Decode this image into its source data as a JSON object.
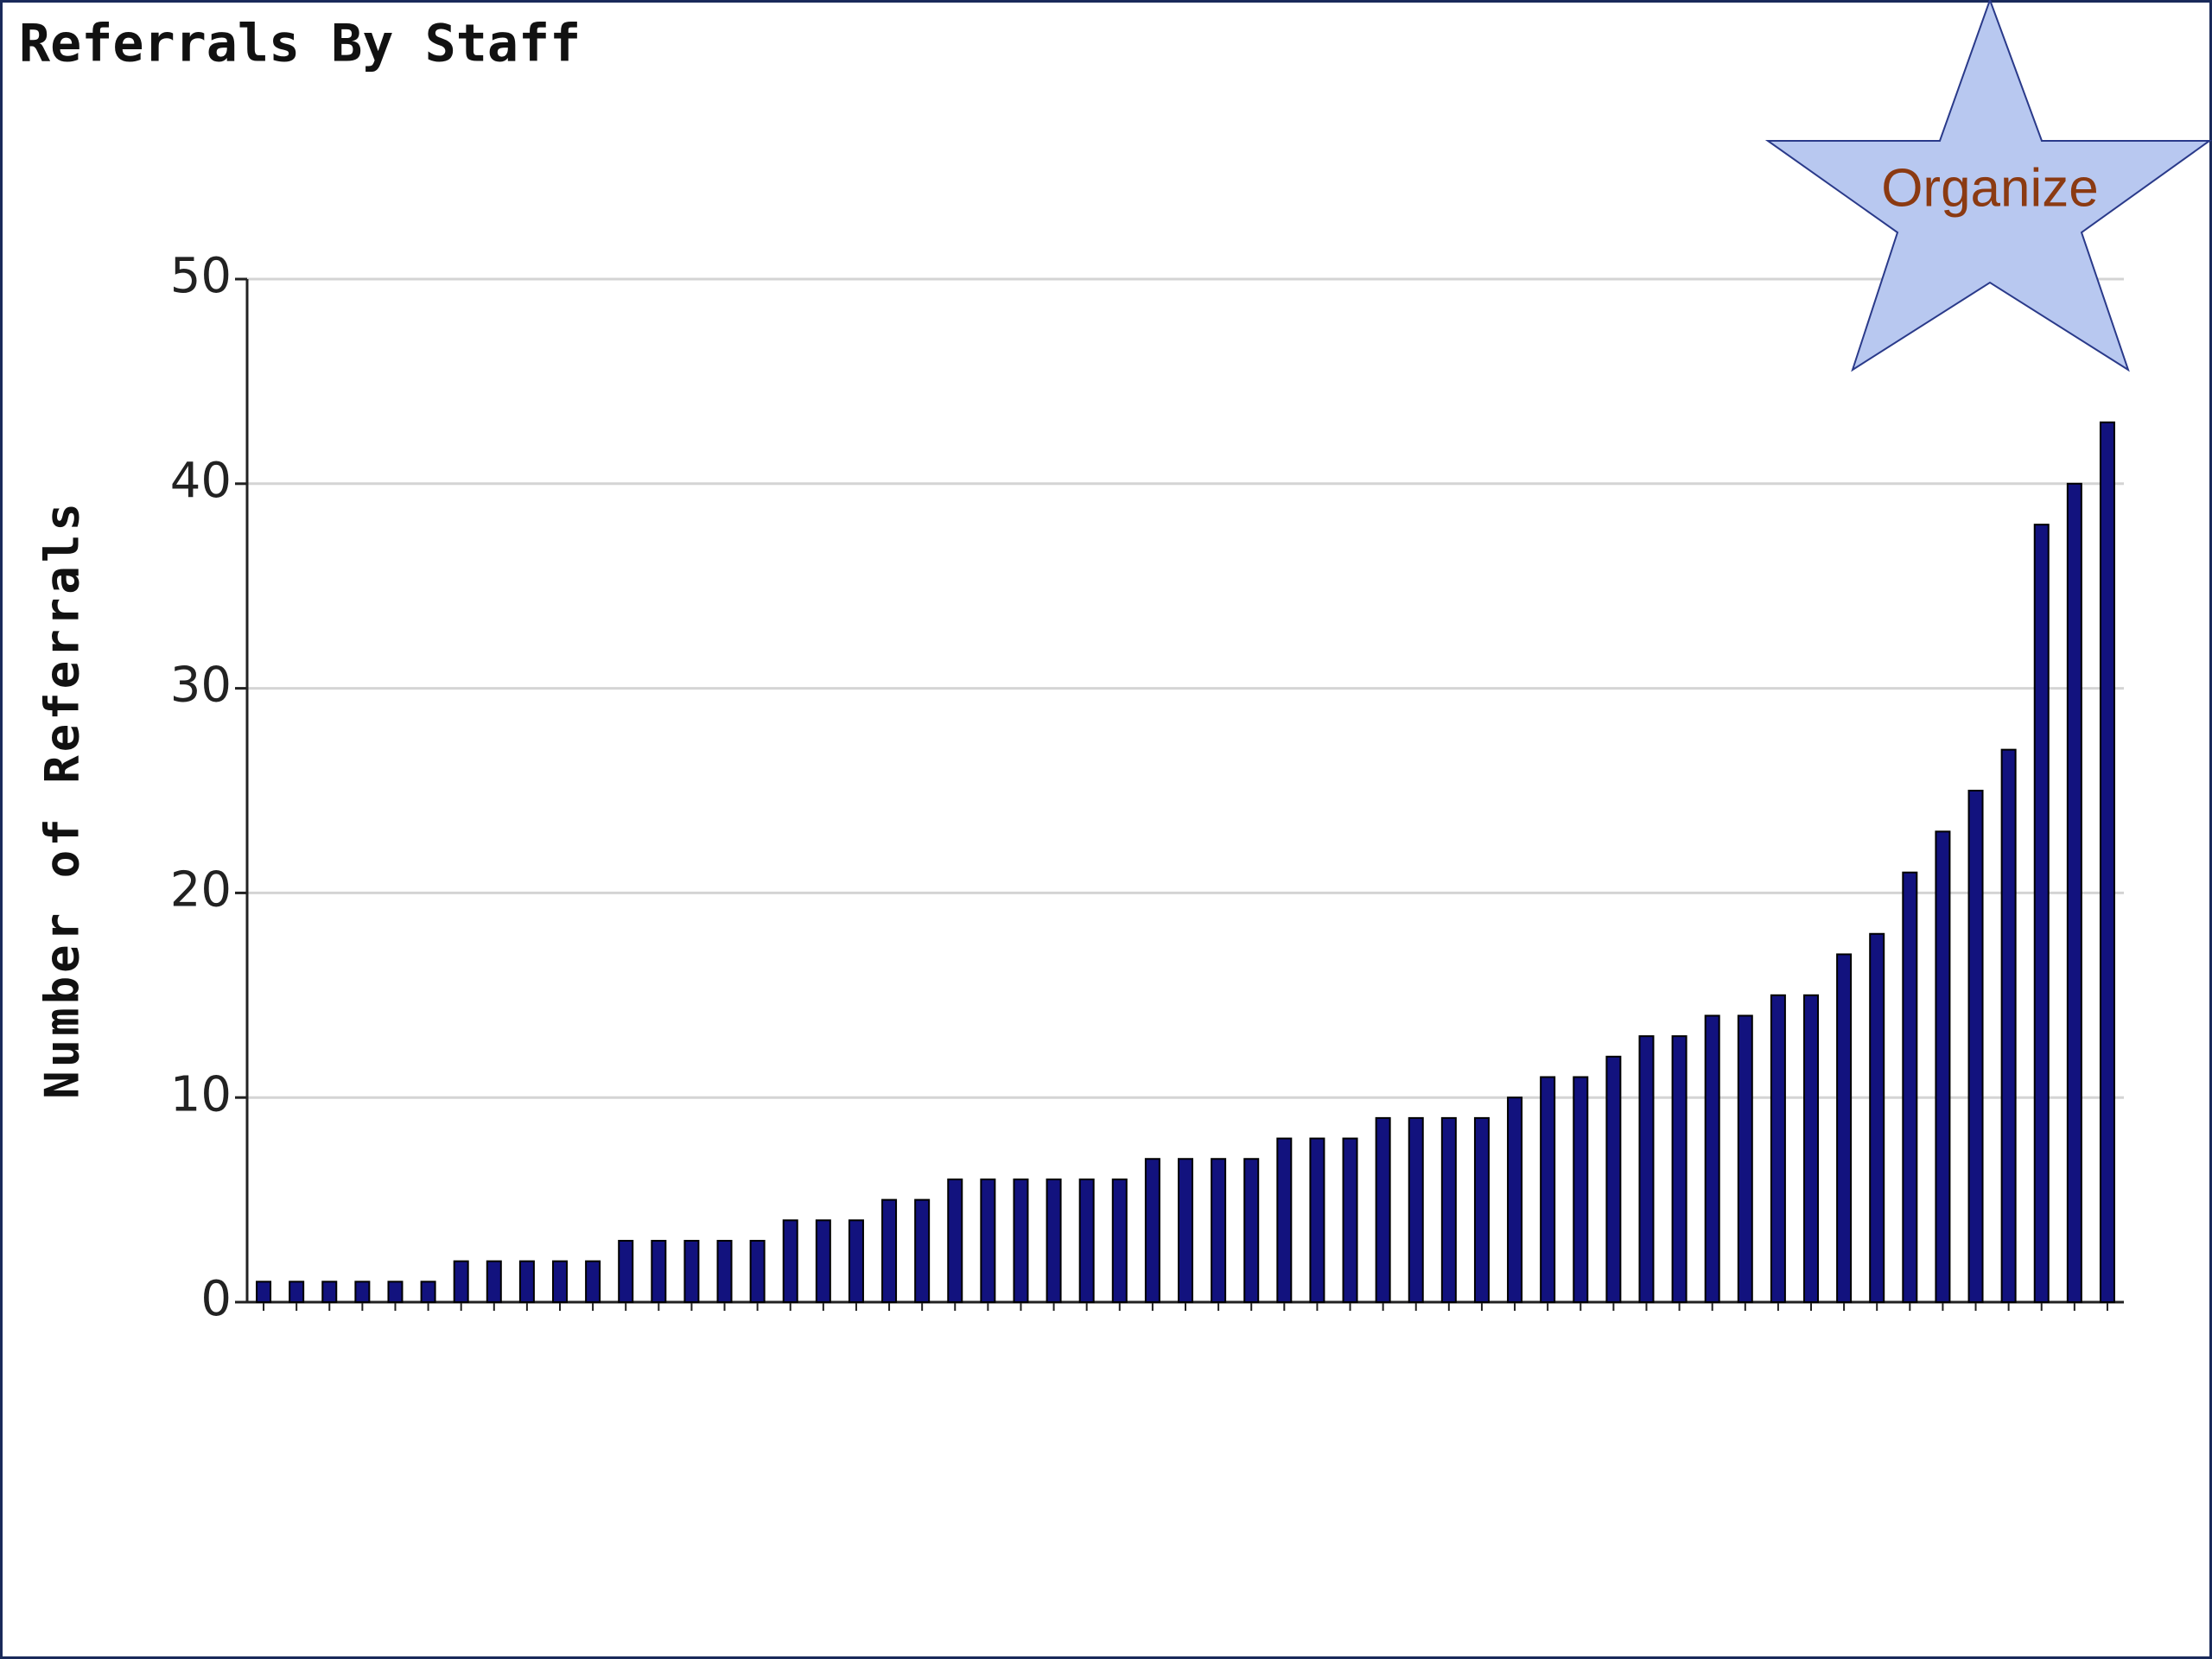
{
  "chart_data": {
    "type": "bar",
    "title": "Referrals By Staff",
    "y_label": "Number of Referrals",
    "button": "Organize",
    "categories": [
      null,
      null,
      null,
      null,
      null,
      null,
      null,
      null,
      null,
      null,
      null,
      null,
      null,
      null,
      null,
      null,
      null,
      null,
      null,
      null,
      null,
      null,
      null,
      null,
      null,
      null,
      null,
      null,
      null,
      null,
      null,
      null,
      null,
      null,
      null,
      null,
      null,
      null,
      null,
      null,
      null,
      null,
      null,
      null,
      null,
      null,
      null,
      null,
      null,
      null,
      null,
      null,
      null,
      null,
      null,
      null,
      null
    ],
    "values": [
      1,
      1,
      1,
      1,
      1,
      1,
      2,
      2,
      2,
      2,
      2,
      3,
      3,
      3,
      3,
      3,
      4,
      4,
      4,
      5,
      5,
      6,
      6,
      6,
      6,
      6,
      6,
      7,
      7,
      7,
      7,
      8,
      8,
      8,
      9,
      9,
      9,
      9,
      10,
      11,
      11,
      12,
      13,
      13,
      14,
      14,
      15,
      15,
      17,
      18,
      21,
      23,
      25,
      27,
      38,
      40,
      43
    ],
    "color": "#12127e",
    "ylim": [
      0,
      50
    ],
    "yticks": [
      0,
      10,
      20,
      30,
      40,
      50
    ],
    "grid": true
  }
}
